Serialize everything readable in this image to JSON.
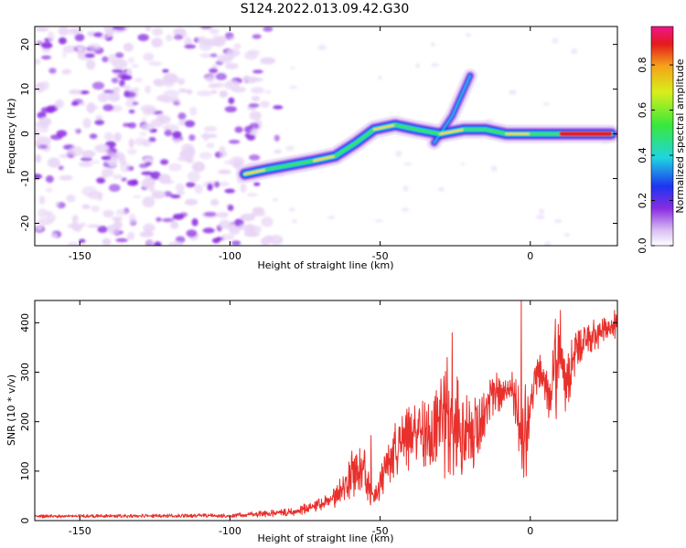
{
  "colors": {
    "signal_cyan": "#1fd4e0",
    "signal_green": "#38e83c",
    "signal_yellow": "#f0e020",
    "signal_red": "#e41a1c",
    "snr_line": "#e8302c",
    "noise_purple": "#8a2be2",
    "signal_blue": "#1d34f0",
    "noise_light": "#e9d6f6"
  },
  "chart_data": [
    {
      "type": "heatmap",
      "title": "S124.2022.013.09.42.G30",
      "xlabel": "Height of straight line (km)",
      "ylabel": "Frequency (Hz)",
      "xlim": [
        -165,
        29
      ],
      "ylim": [
        -25,
        24
      ],
      "x_ticks": [
        -150,
        -100,
        -50,
        0
      ],
      "y_ticks": [
        -20,
        -10,
        0,
        10,
        20
      ],
      "colorbar": {
        "label": "Normalized spectral amplitude",
        "range": [
          0,
          0.97
        ],
        "ticks": [
          "0.0",
          "0.2",
          "0.4",
          "0.6",
          "0.8"
        ],
        "tick_values": [
          0,
          0.2,
          0.4,
          0.6,
          0.8
        ],
        "colormap": "rainbow (white → purple → blue → cyan → green → yellow → red → magenta)"
      },
      "signal_track": [
        {
          "x": -95,
          "y": -9
        },
        {
          "x": -88,
          "y": -8
        },
        {
          "x": -80,
          "y": -7
        },
        {
          "x": -72,
          "y": -6
        },
        {
          "x": -65,
          "y": -5
        },
        {
          "x": -58,
          "y": -2
        },
        {
          "x": -52,
          "y": 1
        },
        {
          "x": -45,
          "y": 2
        },
        {
          "x": -38,
          "y": 1
        },
        {
          "x": -30,
          "y": 0
        },
        {
          "x": -22,
          "y": 1
        },
        {
          "x": -15,
          "y": 1
        },
        {
          "x": -8,
          "y": 0
        },
        {
          "x": 0,
          "y": 0
        },
        {
          "x": 10,
          "y": 0
        },
        {
          "x": 20,
          "y": 0
        },
        {
          "x": 27,
          "y": 0
        }
      ],
      "secondary_track": [
        {
          "x": -32,
          "y": -2
        },
        {
          "x": -26,
          "y": 4
        },
        {
          "x": -20,
          "y": 13
        }
      ],
      "noise_region": [
        -165,
        -90
      ],
      "peak_region": [
        10,
        27
      ]
    },
    {
      "type": "line",
      "xlabel": "Height of straight line (km)",
      "ylabel": "SNR (10 * v/v)",
      "xlim": [
        -165,
        29
      ],
      "ylim": [
        0,
        445
      ],
      "x_ticks": [
        -150,
        -100,
        -50,
        0
      ],
      "y_ticks": [
        0,
        100,
        200,
        300,
        400
      ],
      "envelope": {
        "x": [
          -165,
          -100,
          -80,
          -70,
          -65,
          -60,
          -55,
          -52,
          -48,
          -44,
          -40,
          -35,
          -30,
          -27,
          -25,
          -22,
          -20,
          -17,
          -15,
          -12,
          -10,
          -6,
          -3,
          -1,
          0,
          3,
          5,
          7,
          8,
          10,
          12,
          15,
          20,
          25,
          29
        ],
        "lo": [
          5,
          6,
          8,
          18,
          25,
          40,
          35,
          25,
          60,
          95,
          95,
          110,
          85,
          70,
          75,
          85,
          90,
          120,
          170,
          220,
          220,
          240,
          60,
          90,
          200,
          260,
          240,
          180,
          140,
          300,
          200,
          300,
          330,
          360,
          370
        ],
        "hi": [
          12,
          14,
          25,
          45,
          70,
          140,
          150,
          60,
          160,
          210,
          250,
          240,
          280,
          380,
          340,
          270,
          260,
          250,
          265,
          320,
          290,
          300,
          290,
          280,
          275,
          340,
          300,
          330,
          420,
          395,
          360,
          385,
          405,
          410,
          425
        ]
      },
      "spikes": [
        {
          "x": -53,
          "y": 172
        },
        {
          "x": -26,
          "y": 380
        },
        {
          "x": -6,
          "y": 300
        },
        {
          "x": -3,
          "y": 445
        },
        {
          "x": 10,
          "y": 425
        },
        {
          "x": 28,
          "y": 425
        }
      ]
    }
  ]
}
